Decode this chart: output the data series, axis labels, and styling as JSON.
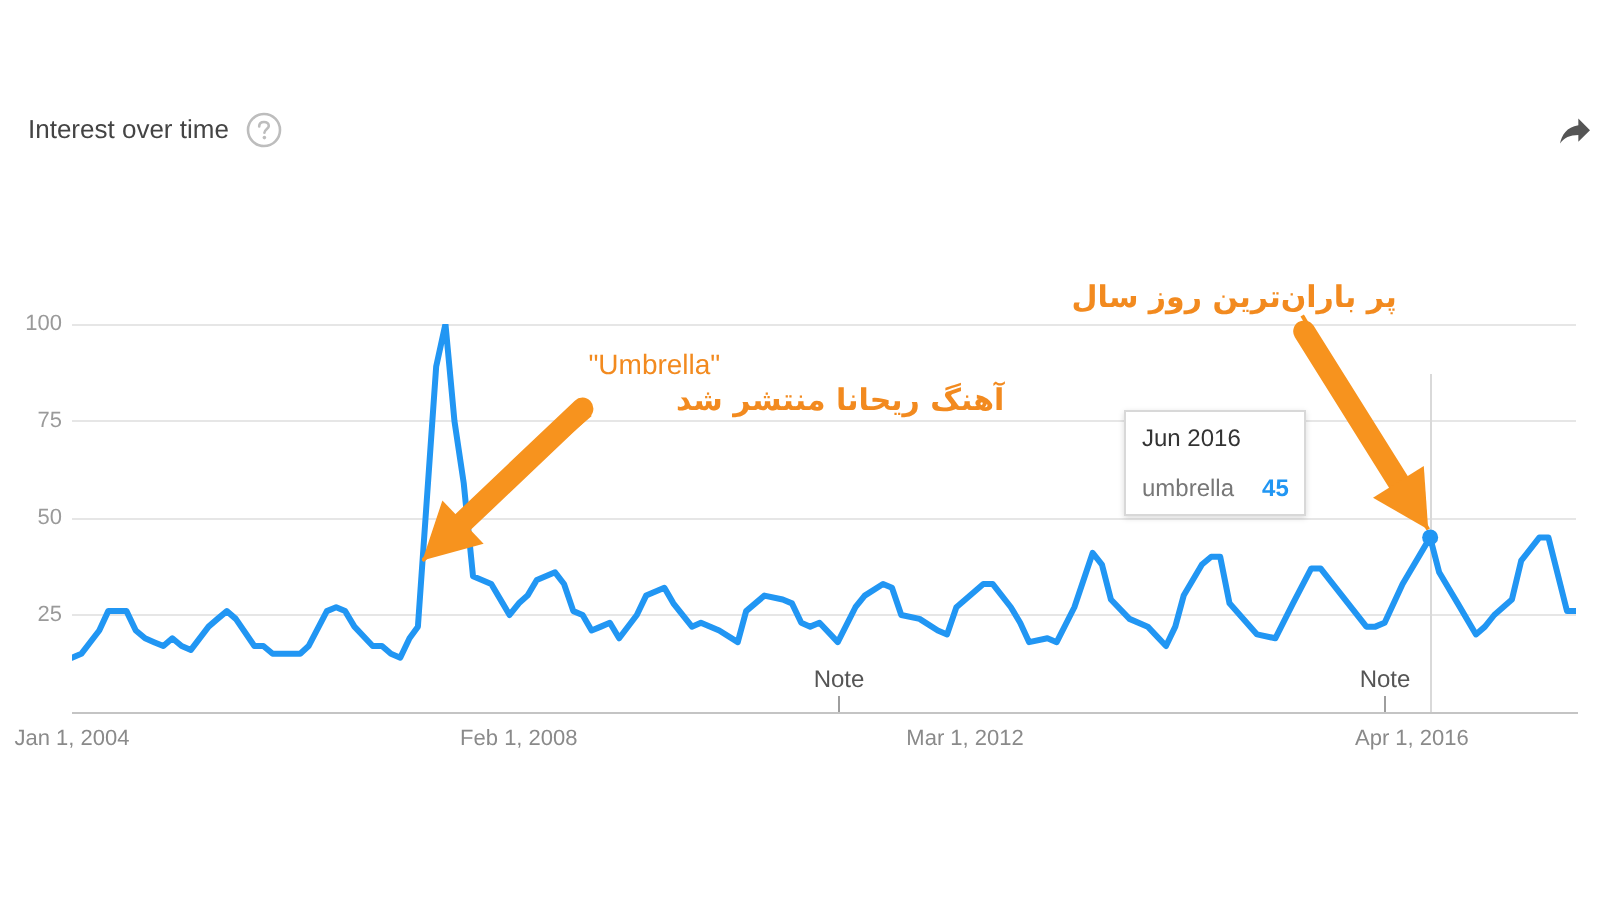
{
  "chart_data": {
    "type": "line",
    "title": "Interest over time",
    "x": [
      "2004-01",
      "2004-02",
      "2004-04",
      "2004-05",
      "2004-07",
      "2004-08",
      "2004-09",
      "2004-10",
      "2004-11",
      "2004-12",
      "2005-01",
      "2005-02",
      "2005-04",
      "2005-05",
      "2005-06",
      "2005-07",
      "2005-09",
      "2005-10",
      "2005-11",
      "2006-02",
      "2006-03",
      "2006-05",
      "2006-06",
      "2006-07",
      "2006-08",
      "2006-10",
      "2006-11",
      "2006-12",
      "2007-01",
      "2007-02",
      "2007-03",
      "2007-05",
      "2007-06",
      "2007-07",
      "2007-08",
      "2007-09",
      "2007-11",
      "2008-01",
      "2008-02",
      "2008-03",
      "2008-04",
      "2008-06",
      "2008-07",
      "2008-08",
      "2008-09",
      "2008-10",
      "2008-11",
      "2008-12",
      "2009-01",
      "2009-03",
      "2009-04",
      "2009-06",
      "2009-07",
      "2009-09",
      "2009-10",
      "2009-12",
      "2010-02",
      "2010-03",
      "2010-05",
      "2010-07",
      "2010-08",
      "2010-09",
      "2010-10",
      "2010-11",
      "2011-01",
      "2011-03",
      "2011-04",
      "2011-06",
      "2011-07",
      "2011-08",
      "2011-10",
      "2011-12",
      "2012-01",
      "2012-02",
      "2012-04",
      "2012-05",
      "2012-06",
      "2012-08",
      "2012-09",
      "2012-10",
      "2012-12",
      "2013-01",
      "2013-03",
      "2013-05",
      "2013-06",
      "2013-07",
      "2013-09",
      "2013-11",
      "2014-01",
      "2014-02",
      "2014-03",
      "2014-05",
      "2014-06",
      "2014-07",
      "2014-08",
      "2014-11",
      "2015-01",
      "2015-03",
      "2015-05",
      "2015-06",
      "2015-08",
      "2015-11",
      "2015-12",
      "2016-01",
      "2016-03",
      "2016-06",
      "2016-07",
      "2016-09",
      "2016-11",
      "2016-12",
      "2017-01",
      "2017-03",
      "2017-04",
      "2017-06",
      "2017-07",
      "2017-09",
      "2017-10"
    ],
    "series": [
      {
        "name": "umbrella",
        "color": "#2196f3",
        "values": [
          14,
          15,
          21,
          26,
          26,
          21,
          19,
          18,
          17,
          19,
          17,
          16,
          22,
          24,
          26,
          24,
          17,
          17,
          15,
          15,
          17,
          26,
          27,
          26,
          22,
          17,
          17,
          15,
          14,
          19,
          22,
          89,
          100,
          75,
          59,
          35,
          33,
          25,
          28,
          30,
          34,
          36,
          33,
          26,
          25,
          21,
          22,
          23,
          19,
          25,
          30,
          32,
          28,
          22,
          23,
          21,
          18,
          26,
          30,
          29,
          28,
          23,
          22,
          23,
          18,
          27,
          30,
          33,
          32,
          25,
          24,
          21,
          20,
          27,
          31,
          33,
          33,
          27,
          23,
          18,
          19,
          18,
          27,
          41,
          38,
          29,
          24,
          22,
          17,
          22,
          30,
          38,
          40,
          40,
          28,
          20,
          19,
          28,
          37,
          37,
          31,
          22,
          22,
          23,
          33,
          45,
          36,
          28,
          20,
          22,
          25,
          29,
          39,
          45,
          45,
          26,
          26
        ]
      }
    ],
    "xlim": [
      "2004-01",
      "2017-10"
    ],
    "xticks": [
      {
        "value": "2004-01-01",
        "label": "Jan 1, 2004"
      },
      {
        "value": "2008-02-01",
        "label": "Feb 1, 2008"
      },
      {
        "value": "2012-03-01",
        "label": "Mar 1, 2012"
      },
      {
        "value": "2016-04-01",
        "label": "Apr 1, 2016"
      }
    ],
    "ylim": [
      0,
      100
    ],
    "yticks": [
      25,
      50,
      75,
      100
    ],
    "grid": "y",
    "ref_lines": [
      {
        "axis": "x",
        "value": "2016-06",
        "color": "#d9d9d9"
      }
    ],
    "annotations": [
      {
        "text": "\"Umbrella\"\nآهنگ ریحانا منتشر شد",
        "x": "2007-03-16",
        "y": 39
      },
      {
        "text": "پر باران‌ترین روز سال",
        "x": "2016-06",
        "y": 45
      },
      "Jun 2016",
      "45",
      "Note",
      "Note"
    ]
  }
}
